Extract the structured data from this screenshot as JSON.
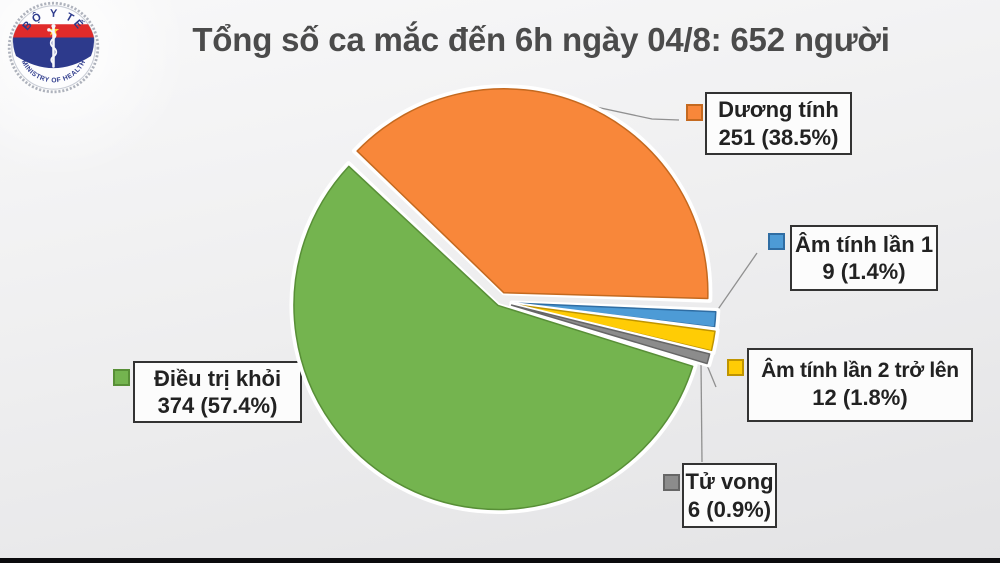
{
  "title": "Tổng số ca mắc đến 6h ngày 04/8: 652 người",
  "logo": {
    "top_text": "BỘ Y TẾ",
    "bottom_text": "MINISTRY OF HEALTH",
    "colors": {
      "red": "#E02B2B",
      "navy": "#2D3A8C",
      "star": "#FFD23E",
      "wreath": "#AEB2BC"
    }
  },
  "chart_data": {
    "type": "pie",
    "title": "Tổng số ca mắc đến 6h ngày 04/8: 652 người",
    "total": 652,
    "unit": "người",
    "direction": "clockwise",
    "start_angle_deg": -46.5,
    "exploded": true,
    "legend_position": "callout-labels",
    "slices": [
      {
        "label": "Dương tính",
        "value": 251,
        "percent": 38.5,
        "value_text": "251 (38.5%)",
        "color": "#F8873A",
        "border": "#C4691F"
      },
      {
        "label": "Âm tính lần 1",
        "value": 9,
        "percent": 1.4,
        "value_text": "9 (1.4%)",
        "color": "#4D9BD6",
        "border": "#2F6DA3"
      },
      {
        "label": "Âm tính lần 2 trở lên",
        "value": 12,
        "percent": 1.8,
        "value_text": "12 (1.8%)",
        "color": "#FFCC05",
        "border": "#BF9400"
      },
      {
        "label": "Tử vong",
        "value": 6,
        "percent": 0.9,
        "value_text": "6 (0.9%)",
        "color": "#8C8C8C",
        "border": "#666666"
      },
      {
        "label": "Điều trị khỏi",
        "value": 374,
        "percent": 57.4,
        "value_text": "374 (57.4%)",
        "color": "#74B44F",
        "border": "#588F37"
      }
    ]
  }
}
